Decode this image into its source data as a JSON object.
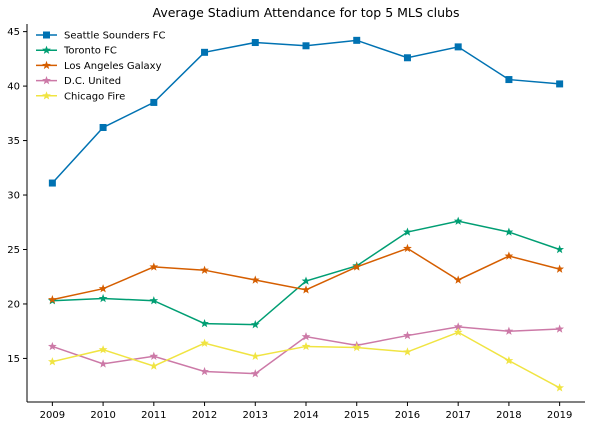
{
  "chart_data": {
    "type": "line",
    "title": "Average Stadium Attendance for top 5 MLS clubs",
    "xlabel": "",
    "ylabel": "",
    "x": [
      2009,
      2010,
      2011,
      2012,
      2013,
      2014,
      2015,
      2016,
      2017,
      2018,
      2019
    ],
    "xlim": [
      2008.5,
      2019.5
    ],
    "ylim": [
      11,
      45.7
    ],
    "yticks": [
      15,
      20,
      25,
      30,
      35,
      40,
      45
    ],
    "grid": false,
    "legend_position": "top-left",
    "series": [
      {
        "name": "Seattle Sounders FC",
        "color": "#0072B2",
        "marker": "square",
        "values": [
          31.1,
          36.2,
          38.5,
          43.1,
          44.0,
          43.7,
          44.2,
          42.6,
          43.6,
          40.6,
          40.2
        ]
      },
      {
        "name": "Toronto FC",
        "color": "#009E73",
        "marker": "star",
        "values": [
          20.3,
          20.5,
          20.3,
          18.2,
          18.1,
          22.1,
          23.5,
          26.6,
          27.6,
          26.6,
          25.0
        ]
      },
      {
        "name": "Los Angeles Galaxy",
        "color": "#D55E00",
        "marker": "star",
        "values": [
          20.4,
          21.4,
          23.4,
          23.1,
          22.2,
          21.3,
          23.4,
          25.1,
          22.2,
          24.4,
          23.2
        ]
      },
      {
        "name": "D.C. United",
        "color": "#CC79A7",
        "marker": "star",
        "values": [
          16.1,
          14.5,
          15.2,
          13.8,
          13.6,
          17.0,
          16.2,
          17.1,
          17.9,
          17.5,
          17.7
        ]
      },
      {
        "name": "Chicago Fire",
        "color": "#F0E442",
        "marker": "star",
        "values": [
          14.7,
          15.8,
          14.3,
          16.4,
          15.2,
          16.1,
          16.0,
          15.6,
          17.4,
          14.8,
          12.3
        ]
      }
    ]
  }
}
